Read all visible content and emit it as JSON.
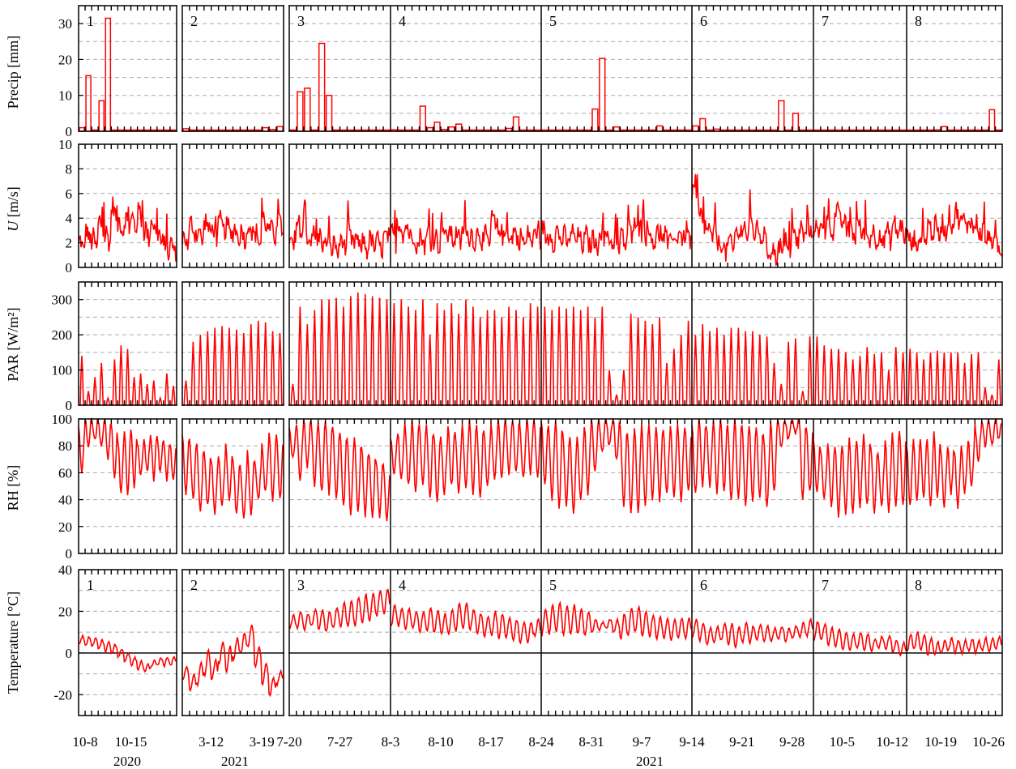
{
  "chart_data": {
    "type": "line",
    "colors": {
      "series": "#ff0000",
      "grid": "#aaaaaa",
      "axis": "#000000"
    },
    "segments": [
      {
        "number": "1",
        "date_range": [
          "2020-10-07",
          "2020-10-22"
        ]
      },
      {
        "number": "2",
        "date_range": [
          "2021-03-08",
          "2021-03-23"
        ]
      },
      {
        "number": "3",
        "date_range": [
          "2021-07-20",
          "2021-08-03"
        ]
      },
      {
        "number": "4",
        "date_range": [
          "2021-08-03",
          "2021-08-24"
        ]
      },
      {
        "number": "5",
        "date_range": [
          "2021-08-24",
          "2021-09-14"
        ]
      },
      {
        "number": "6",
        "date_range": [
          "2021-09-14",
          "2021-10-01"
        ]
      },
      {
        "number": "7",
        "date_range": [
          "2021-10-01",
          "2021-10-14"
        ]
      },
      {
        "number": "8",
        "date_range": [
          "2021-10-14",
          "2021-10-27"
        ]
      }
    ],
    "x_tick_labels": [
      "10-8",
      "10-15",
      "3-12",
      "3-19",
      "7-20",
      "7-27",
      "8-3",
      "8-10",
      "8-17",
      "8-24",
      "8-31",
      "9-7",
      "9-14",
      "9-21",
      "9-28",
      "10-5",
      "10-12",
      "10-19",
      "10-26"
    ],
    "year_labels": [
      "2020",
      "2021",
      "2021"
    ],
    "panels": [
      {
        "ylabel": "Precip [mm]",
        "ylim": [
          0,
          35
        ],
        "yticks": [
          "0",
          "10",
          "20",
          "30"
        ],
        "plot_style": "bar",
        "daily_values": [
          [
            1,
            15.5,
            0,
            8.5,
            31.5,
            0,
            0,
            0,
            0,
            0,
            0,
            0,
            0,
            0,
            0
          ],
          [
            0.7,
            0,
            0,
            0,
            0,
            0,
            0,
            0,
            0,
            0,
            0,
            1,
            0.5,
            1.3
          ],
          [
            0,
            11,
            12,
            0,
            24.5,
            10,
            0.2,
            0.3,
            0.2,
            0,
            0.1,
            0,
            0,
            0
          ],
          [
            0.4,
            0,
            0,
            0,
            7,
            1,
            2.5,
            0.5,
            1.2,
            2,
            0,
            0,
            0,
            0,
            0,
            0,
            0.8,
            4,
            0,
            0,
            0
          ],
          [
            0,
            0,
            0,
            0,
            0,
            0,
            0,
            6.2,
            20.3,
            0,
            1.2,
            0,
            0,
            0,
            0,
            0,
            1.5,
            0,
            0,
            0,
            0
          ],
          [
            1.5,
            3.5,
            0,
            0.6,
            0,
            0,
            0.3,
            0,
            0,
            0,
            0,
            0,
            8.5,
            0,
            5,
            0,
            0
          ],
          [
            0,
            0,
            0,
            0,
            0,
            0,
            0,
            0,
            0,
            0,
            0,
            0,
            0
          ],
          [
            0,
            0,
            0,
            0,
            0.4,
            1.3,
            0,
            0,
            0,
            0,
            0,
            0,
            6,
            0
          ]
        ]
      },
      {
        "ylabel": "U [m/s]",
        "ylabel_italic_part": "U",
        "ylim": [
          0,
          10
        ],
        "yticks": [
          "0",
          "2",
          "4",
          "6",
          "8",
          "10"
        ],
        "plot_style": "line",
        "daily_values": [
          [
            1.8,
            2.6,
            2.0,
            3.4,
            2.4,
            4.6,
            3.4,
            3.6,
            3.6,
            4.2,
            2.8,
            3.4,
            2.4,
            1.6,
            1.6
          ],
          [
            2.2,
            3.2,
            2.6,
            3.4,
            2.8,
            3.4,
            3.0,
            2.8,
            2.6,
            3.2,
            2.4,
            3.6,
            2.8,
            3.6
          ],
          [
            1.6,
            3.2,
            2.6,
            2.4,
            2.2,
            1.8,
            1.6,
            2.0,
            2.4,
            2.0,
            1.8,
            2.0,
            1.8,
            2.2
          ],
          [
            2.4,
            3.2,
            3.0,
            2.2,
            2.2,
            2.4,
            2.2,
            2.8,
            2.6,
            2.4,
            2.8,
            2.4,
            2.6,
            2.2,
            3.6,
            2.8,
            2.6,
            2.6,
            2.2,
            2.4,
            2.6
          ],
          [
            2.8,
            2.4,
            2.6,
            2.2,
            2.6,
            2.2,
            2.2,
            2.0,
            2.6,
            2.4,
            1.8,
            2.2,
            2.8,
            3.6,
            2.8,
            2.4,
            2.4,
            2.2,
            2.4,
            2.6,
            2.6
          ],
          [
            5.6,
            3.8,
            2.8,
            2.4,
            1.6,
            1.8,
            2.6,
            3.0,
            3.2,
            2.8,
            1.6,
            1.2,
            1.4,
            1.8,
            2.4,
            2.8,
            3.0
          ],
          [
            3.0,
            3.2,
            3.2,
            4.2,
            3.4,
            2.8,
            3.2,
            2.6,
            2.6,
            2.4,
            2.6,
            3.2,
            3.0
          ],
          [
            2.2,
            2.0,
            2.4,
            3.2,
            3.0,
            3.2,
            3.8,
            4.2,
            3.6,
            3.6,
            3.2,
            2.6,
            2.2,
            1.4
          ]
        ]
      },
      {
        "ylabel": "PAR [W/m²]",
        "ylim": [
          0,
          350
        ],
        "yticks": [
          "0",
          "100",
          "200",
          "300"
        ],
        "plot_style": "diurnal",
        "daily_peaks": [
          [
            140,
            40,
            80,
            120,
            20,
            130,
            170,
            160,
            80,
            90,
            60,
            70,
            20,
            90,
            55
          ],
          [
            70,
            180,
            200,
            210,
            220,
            225,
            220,
            215,
            205,
            230,
            240,
            235,
            210,
            205
          ],
          [
            60,
            280,
            230,
            270,
            300,
            300,
            305,
            280,
            310,
            320,
            315,
            310,
            305,
            300
          ],
          [
            290,
            300,
            280,
            270,
            300,
            200,
            290,
            270,
            290,
            260,
            300,
            280,
            250,
            270,
            270,
            250,
            280,
            270,
            250,
            290,
            280
          ],
          [
            280,
            270,
            280,
            275,
            280,
            270,
            280,
            250,
            280,
            100,
            30,
            100,
            260,
            250,
            240,
            230,
            250,
            120,
            160,
            200,
            240
          ],
          [
            200,
            230,
            210,
            220,
            200,
            220,
            220,
            210,
            210,
            200,
            195,
            120,
            60,
            180,
            190,
            40,
            195
          ],
          [
            195,
            170,
            160,
            160,
            150,
            130,
            140,
            165,
            145,
            150,
            100,
            165,
            150
          ],
          [
            160,
            150,
            130,
            150,
            155,
            150,
            150,
            150,
            120,
            145,
            150,
            50,
            30,
            130
          ]
        ]
      },
      {
        "ylabel": "RH [%]",
        "ylim": [
          0,
          100
        ],
        "yticks": [
          "0",
          "20",
          "40",
          "60",
          "80",
          "100"
        ],
        "plot_style": "diurnal-rh",
        "daily_max": [
          [
            95,
            100,
            100,
            98,
            100,
            95,
            85,
            90,
            92,
            80,
            85,
            90,
            88,
            85,
            80
          ],
          [
            88,
            85,
            80,
            75,
            70,
            72,
            80,
            70,
            65,
            75,
            70,
            80,
            90,
            88
          ],
          [
            92,
            95,
            100,
            100,
            98,
            100,
            95,
            90,
            85,
            85,
            80,
            75,
            70,
            65
          ],
          [
            85,
            90,
            95,
            100,
            95,
            95,
            90,
            85,
            95,
            90,
            95,
            100,
            95,
            90,
            95,
            100,
            100,
            100,
            95,
            100,
            100
          ],
          [
            100,
            95,
            100,
            90,
            85,
            85,
            95,
            100,
            100,
            100,
            100,
            95,
            90,
            95,
            95,
            95,
            95,
            90,
            95,
            95,
            95
          ],
          [
            95,
            100,
            95,
            100,
            100,
            95,
            100,
            95,
            95,
            95,
            90,
            100,
            100,
            100,
            100,
            100,
            95
          ],
          [
            85,
            75,
            80,
            80,
            80,
            85,
            85,
            90,
            80,
            75,
            85,
            90,
            90
          ],
          [
            80,
            85,
            85,
            85,
            90,
            75,
            80,
            75,
            80,
            85,
            95,
            100,
            100,
            100
          ]
        ],
        "daily_min": [
          [
            60,
            80,
            85,
            80,
            70,
            55,
            45,
            45,
            50,
            60,
            60,
            55,
            60,
            55,
            55
          ],
          [
            45,
            40,
            30,
            35,
            30,
            35,
            40,
            30,
            25,
            30,
            40,
            45,
            40,
            40
          ],
          [
            70,
            55,
            65,
            50,
            45,
            45,
            40,
            35,
            30,
            30,
            28,
            28,
            28,
            25
          ],
          [
            60,
            55,
            50,
            45,
            50,
            40,
            38,
            45,
            50,
            45,
            50,
            45,
            40,
            50,
            55,
            55,
            60,
            60,
            55,
            60,
            55
          ],
          [
            50,
            40,
            35,
            35,
            30,
            40,
            45,
            60,
            75,
            80,
            70,
            35,
            30,
            30,
            35,
            38,
            40,
            45,
            40,
            40,
            45
          ],
          [
            45,
            50,
            50,
            45,
            45,
            40,
            40,
            35,
            38,
            40,
            35,
            45,
            80,
            85,
            90,
            40,
            45
          ],
          [
            45,
            40,
            35,
            28,
            30,
            30,
            35,
            35,
            30,
            35,
            30,
            35,
            35
          ],
          [
            35,
            40,
            40,
            35,
            40,
            35,
            45,
            35,
            45,
            50,
            70,
            80,
            80,
            85
          ]
        ]
      },
      {
        "ylabel": "Temperature [°C]",
        "ylim": [
          -30,
          40
        ],
        "yticks": [
          "-20",
          "0",
          "20",
          "40"
        ],
        "plot_style": "diurnal-temp",
        "daily_mean": [
          [
            6,
            6,
            5,
            4,
            3,
            2,
            0,
            -2,
            -4,
            -6,
            -7,
            -5,
            -4,
            -4,
            -4
          ],
          [
            -10,
            -14,
            -10,
            -5,
            -8,
            0,
            -3,
            2,
            5,
            8,
            -2,
            -10,
            -16,
            -12
          ],
          [
            15,
            16,
            15,
            17,
            16,
            15,
            17,
            18,
            19,
            20,
            21,
            22,
            24,
            25
          ],
          [
            18,
            17,
            16,
            16,
            15,
            16,
            15,
            14,
            15,
            17,
            18,
            16,
            14,
            13,
            14,
            13,
            12,
            11,
            10,
            10,
            12
          ],
          [
            15,
            16,
            17,
            16,
            16,
            15,
            14,
            13,
            13,
            14,
            13,
            13,
            15,
            16,
            14,
            13,
            12,
            12,
            11,
            12,
            12
          ],
          [
            12,
            10,
            8,
            9,
            10,
            9,
            8,
            10,
            9,
            10,
            9,
            9,
            10,
            9,
            10,
            11,
            12
          ],
          [
            11,
            10,
            8,
            7,
            6,
            5,
            6,
            5,
            4,
            5,
            5,
            3,
            2
          ],
          [
            5,
            6,
            5,
            3,
            2,
            3,
            4,
            3,
            3,
            4,
            3,
            4,
            4,
            5
          ]
        ],
        "daily_amplitude": [
          [
            2,
            2,
            2,
            2,
            2,
            2,
            2,
            2,
            2,
            2,
            2,
            2,
            2,
            2,
            2
          ],
          [
            3,
            4,
            6,
            6,
            5,
            5,
            6,
            5,
            5,
            5,
            5,
            5,
            4,
            3
          ],
          [
            3,
            4,
            4,
            4,
            5,
            5,
            5,
            6,
            6,
            7,
            7,
            7,
            6,
            6
          ],
          [
            5,
            4,
            5,
            4,
            5,
            6,
            5,
            5,
            6,
            7,
            6,
            5,
            5,
            5,
            6,
            6,
            5,
            5,
            5,
            5,
            4
          ],
          [
            6,
            7,
            7,
            7,
            7,
            6,
            6,
            3,
            2,
            2,
            3,
            6,
            7,
            6,
            6,
            5,
            5,
            5,
            5,
            5,
            5
          ],
          [
            4,
            4,
            4,
            4,
            4,
            5,
            5,
            5,
            4,
            4,
            4,
            3,
            3,
            3,
            3,
            4,
            4
          ],
          [
            4,
            4,
            4,
            4,
            4,
            4,
            4,
            4,
            3,
            3,
            3,
            3,
            3
          ],
          [
            4,
            4,
            4,
            4,
            3,
            3,
            3,
            3,
            3,
            3,
            3,
            3,
            3,
            3
          ]
        ]
      }
    ]
  }
}
